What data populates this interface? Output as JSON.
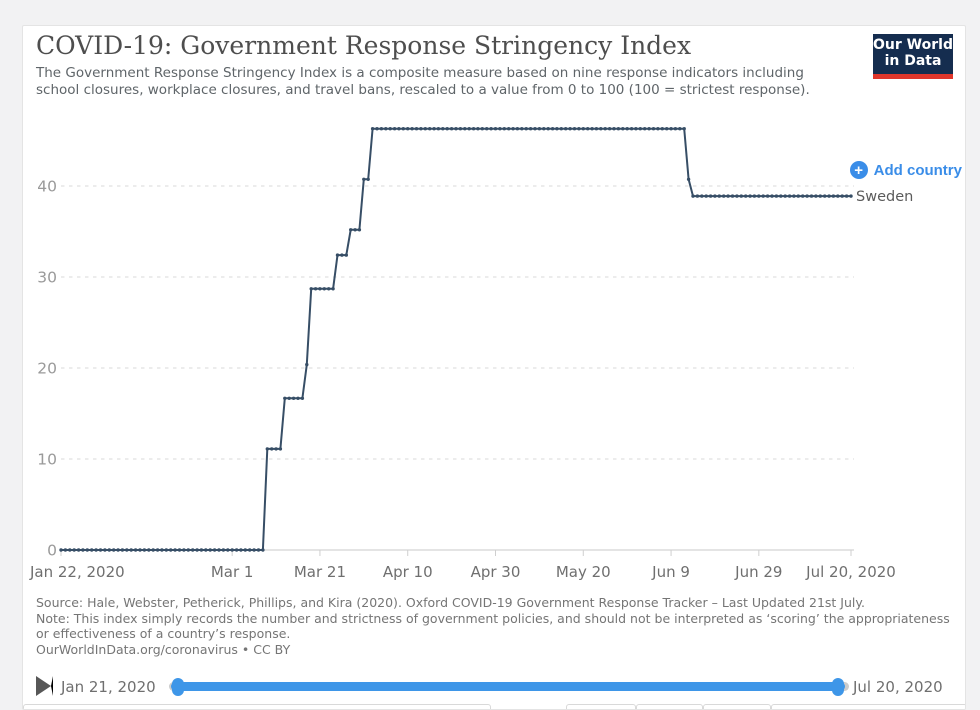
{
  "page": {
    "background_color": "#f2f2f3",
    "card_background": "#ffffff"
  },
  "header": {
    "title": "COVID-19: Government Response Stringency Index",
    "subtitle_line1": "The Government Response Stringency Index is a composite measure based on nine response indicators including",
    "subtitle_line2": "school closures, workplace closures, and travel bans, rescaled to a value from 0 to 100 (100 = strictest response).",
    "logo": {
      "line1": "Our World",
      "line2": "in Data",
      "background": "#152d4f",
      "accent": "#e0362b"
    }
  },
  "controls": {
    "add_country_label": "Add country",
    "accent_blue": "#3a8de8"
  },
  "chart_data": {
    "type": "line",
    "title": "COVID-19: Government Response Stringency Index",
    "x_axis": {
      "days_total": 180,
      "ticks": [
        {
          "label": "Jan 22, 2020",
          "day": 0
        },
        {
          "label": "Mar 1",
          "day": 39
        },
        {
          "label": "Mar 21",
          "day": 59
        },
        {
          "label": "Apr 10",
          "day": 79
        },
        {
          "label": "Apr 30",
          "day": 99
        },
        {
          "label": "May 20",
          "day": 119
        },
        {
          "label": "Jun 9",
          "day": 139
        },
        {
          "label": "Jun 29",
          "day": 159
        },
        {
          "label": "Jul 20, 2020",
          "day": 180
        }
      ]
    },
    "y_axis": {
      "ticks": [
        0,
        10,
        20,
        30,
        40
      ],
      "range": [
        0,
        46.3
      ],
      "grid": "dashed"
    },
    "series": [
      {
        "name": "Sweden",
        "color": "#374e66",
        "steps": [
          {
            "from_day": 0,
            "to_day": 46,
            "value": 0,
            "from_date": "Jan 22",
            "to_date": "Mar 8"
          },
          {
            "from_day": 47,
            "to_day": 50,
            "value": 11.11,
            "from_date": "Mar 9",
            "to_date": "Mar 12"
          },
          {
            "from_day": 51,
            "to_day": 55,
            "value": 16.67,
            "from_date": "Mar 13",
            "to_date": "Mar 17"
          },
          {
            "from_day": 56,
            "to_day": 56,
            "value": 20.37,
            "from_date": "Mar 18",
            "to_date": "Mar 18"
          },
          {
            "from_day": 57,
            "to_day": 62,
            "value": 28.7,
            "from_date": "Mar 19",
            "to_date": "Mar 24"
          },
          {
            "from_day": 63,
            "to_day": 65,
            "value": 32.41,
            "from_date": "Mar 25",
            "to_date": "Mar 27"
          },
          {
            "from_day": 66,
            "to_day": 68,
            "value": 35.19,
            "from_date": "Mar 28",
            "to_date": "Mar 30"
          },
          {
            "from_day": 69,
            "to_day": 70,
            "value": 40.74,
            "from_date": "Mar 31",
            "to_date": "Apr 1"
          },
          {
            "from_day": 71,
            "to_day": 142,
            "value": 46.3,
            "from_date": "Apr 2",
            "to_date": "Jun 12"
          },
          {
            "from_day": 143,
            "to_day": 143,
            "value": 40.74,
            "from_date": "Jun 13",
            "to_date": "Jun 13"
          },
          {
            "from_day": 144,
            "to_day": 180,
            "value": 38.89,
            "from_date": "Jun 14",
            "to_date": "Jul 20"
          }
        ]
      }
    ]
  },
  "footer": {
    "source": "Source: Hale, Webster, Petherick, Phillips, and Kira (2020). Oxford COVID-19 Government Response Tracker – Last Updated 21st July.",
    "note_line1": "Note: This index simply records the number and strictness of government policies, and should not be interpreted as ‘scoring’ the appropriateness",
    "note_line2": "or effectiveness of a country’s response.",
    "link_text": "OurWorldInData.org/coronavirus",
    "license_text": " • CC BY"
  },
  "timeline": {
    "start_label": "Jan 21, 2020",
    "end_label": "Jul 20, 2020",
    "slider_color": "#3e96e8"
  }
}
